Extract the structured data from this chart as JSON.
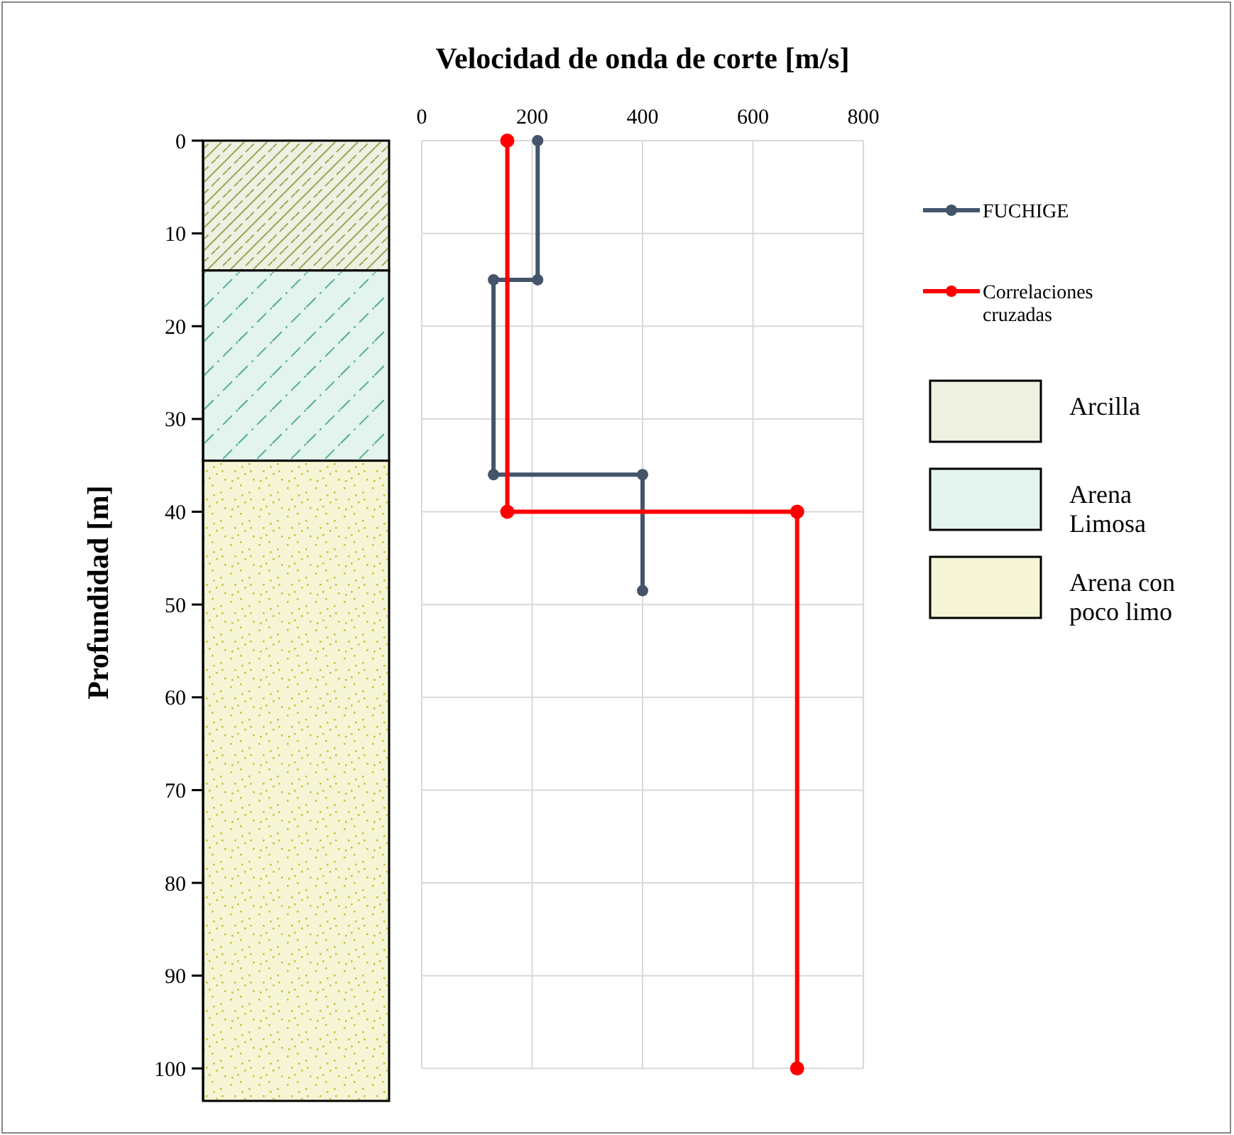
{
  "chart_data": [
    {
      "type": "bar",
      "stacked": true,
      "ylabel": "Profundidad [m]",
      "categories": [
        null
      ],
      "ylim": [
        103.5,
        0
      ],
      "yticks": [
        100,
        90,
        80,
        70,
        60,
        50,
        40,
        30,
        20,
        10,
        0
      ],
      "tick_labels": "y",
      "legend": "right",
      "series": [
        {
          "name": "Arcilla",
          "color": "#eef1e2",
          "values": [
            14
          ]
        },
        {
          "name": "Arena Limosa",
          "color": "#e3f3ee",
          "values": [
            20.5
          ]
        },
        {
          "name": "Arena con poco limo",
          "color": "#f5f5d6",
          "values": [
            69
          ]
        }
      ]
    },
    {
      "type": "line",
      "xlabel": "Velocidad de onda de corte [m/s]",
      "xlim": [
        0,
        800
      ],
      "xticks": [
        0,
        200,
        400,
        600,
        800
      ],
      "ylim": [
        100,
        0
      ],
      "yticks": [
        100,
        90,
        80,
        70,
        60,
        50,
        40,
        30,
        20,
        10,
        0
      ],
      "tick_labels": "x",
      "grid": true,
      "legend": "right",
      "marker": "circle",
      "line_style": "solid",
      "series": [
        {
          "name": "FUCHIGE",
          "color": "#44546a",
          "x": [
            210,
            210,
            130,
            130,
            400,
            400
          ],
          "values": [
            0,
            15,
            15,
            36,
            36,
            48.5
          ]
        },
        {
          "name": "Correlaciones cruzadas",
          "color": "#ff0000",
          "x": [
            155,
            155,
            680,
            680
          ],
          "values": [
            0,
            40,
            40,
            100
          ]
        }
      ]
    }
  ]
}
